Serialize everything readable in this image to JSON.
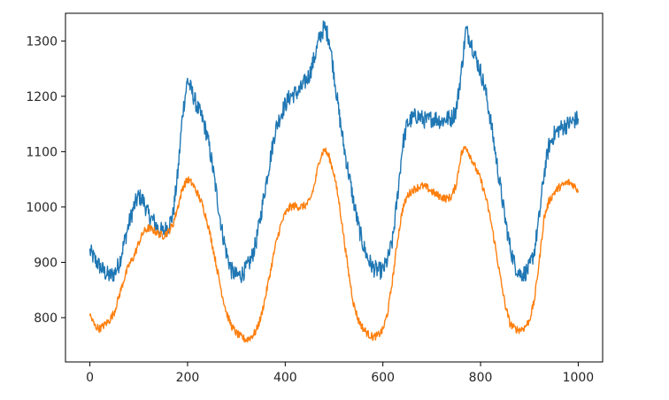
{
  "chart_data": {
    "type": "line",
    "title": "",
    "xlabel": "",
    "ylabel": "",
    "xlim": [
      -50,
      1050
    ],
    "ylim": [
      720,
      1350
    ],
    "xticks": [
      0,
      200,
      400,
      600,
      800,
      1000
    ],
    "yticks": [
      800,
      900,
      1000,
      1100,
      1200,
      1300
    ],
    "grid": false,
    "legend": "none",
    "series": [
      {
        "color": "#1f77b4",
        "noise": 16,
        "x": [
          0,
          10,
          20,
          30,
          40,
          50,
          60,
          70,
          80,
          90,
          100,
          110,
          120,
          130,
          140,
          150,
          160,
          170,
          180,
          190,
          200,
          210,
          220,
          230,
          240,
          250,
          260,
          270,
          280,
          290,
          300,
          310,
          320,
          330,
          340,
          350,
          360,
          370,
          380,
          390,
          400,
          410,
          420,
          430,
          440,
          450,
          460,
          470,
          480,
          490,
          500,
          510,
          520,
          530,
          540,
          550,
          560,
          570,
          580,
          590,
          600,
          610,
          620,
          630,
          640,
          650,
          660,
          670,
          680,
          690,
          700,
          710,
          720,
          730,
          740,
          750,
          760,
          770,
          780,
          790,
          800,
          810,
          820,
          830,
          840,
          850,
          860,
          870,
          880,
          890,
          900,
          910,
          920,
          930,
          940,
          950,
          960,
          970,
          980,
          990,
          1000
        ],
        "y": [
          920,
          905,
          893,
          882,
          875,
          880,
          898,
          935,
          970,
          1000,
          1020,
          1010,
          985,
          975,
          960,
          955,
          965,
          985,
          1060,
          1170,
          1230,
          1205,
          1180,
          1160,
          1130,
          1080,
          1020,
          960,
          915,
          885,
          875,
          878,
          888,
          905,
          935,
          985,
          1040,
          1090,
          1140,
          1165,
          1185,
          1200,
          1205,
          1210,
          1225,
          1240,
          1270,
          1305,
          1325,
          1305,
          1240,
          1170,
          1110,
          1060,
          1010,
          965,
          930,
          905,
          890,
          885,
          885,
          905,
          940,
          1020,
          1110,
          1150,
          1160,
          1165,
          1160,
          1155,
          1160,
          1160,
          1155,
          1160,
          1160,
          1175,
          1240,
          1320,
          1300,
          1270,
          1245,
          1210,
          1160,
          1100,
          1040,
          980,
          930,
          895,
          880,
          880,
          890,
          920,
          980,
          1060,
          1110,
          1130,
          1140,
          1145,
          1150,
          1155,
          1160
        ]
      },
      {
        "color": "#ff7f0e",
        "noise": 7,
        "x": [
          0,
          10,
          20,
          30,
          40,
          50,
          60,
          70,
          80,
          90,
          100,
          110,
          120,
          130,
          140,
          150,
          160,
          170,
          180,
          190,
          200,
          210,
          220,
          230,
          240,
          250,
          260,
          270,
          280,
          290,
          300,
          310,
          320,
          330,
          340,
          350,
          360,
          370,
          380,
          390,
          400,
          410,
          420,
          430,
          440,
          450,
          460,
          470,
          480,
          490,
          500,
          510,
          520,
          530,
          540,
          550,
          560,
          570,
          580,
          590,
          600,
          610,
          620,
          630,
          640,
          650,
          660,
          670,
          680,
          690,
          700,
          710,
          720,
          730,
          740,
          750,
          760,
          770,
          780,
          790,
          800,
          810,
          820,
          830,
          840,
          850,
          860,
          870,
          880,
          890,
          900,
          910,
          920,
          930,
          940,
          950,
          960,
          970,
          980,
          990,
          1000
        ],
        "y": [
          805,
          785,
          780,
          787,
          795,
          810,
          840,
          870,
          895,
          910,
          935,
          955,
          962,
          958,
          952,
          948,
          955,
          968,
          1000,
          1035,
          1050,
          1042,
          1025,
          1005,
          975,
          935,
          890,
          845,
          808,
          785,
          772,
          765,
          760,
          765,
          775,
          800,
          840,
          885,
          930,
          965,
          988,
          1000,
          1002,
          1000,
          1002,
          1010,
          1040,
          1085,
          1105,
          1090,
          1060,
          1010,
          945,
          880,
          825,
          795,
          780,
          770,
          765,
          768,
          778,
          810,
          870,
          940,
          995,
          1020,
          1030,
          1035,
          1038,
          1035,
          1028,
          1022,
          1018,
          1015,
          1018,
          1040,
          1095,
          1110,
          1090,
          1070,
          1050,
          1020,
          980,
          930,
          875,
          825,
          790,
          780,
          778,
          782,
          795,
          830,
          900,
          980,
          1010,
          1025,
          1035,
          1040,
          1045,
          1040,
          1030
        ]
      }
    ]
  }
}
